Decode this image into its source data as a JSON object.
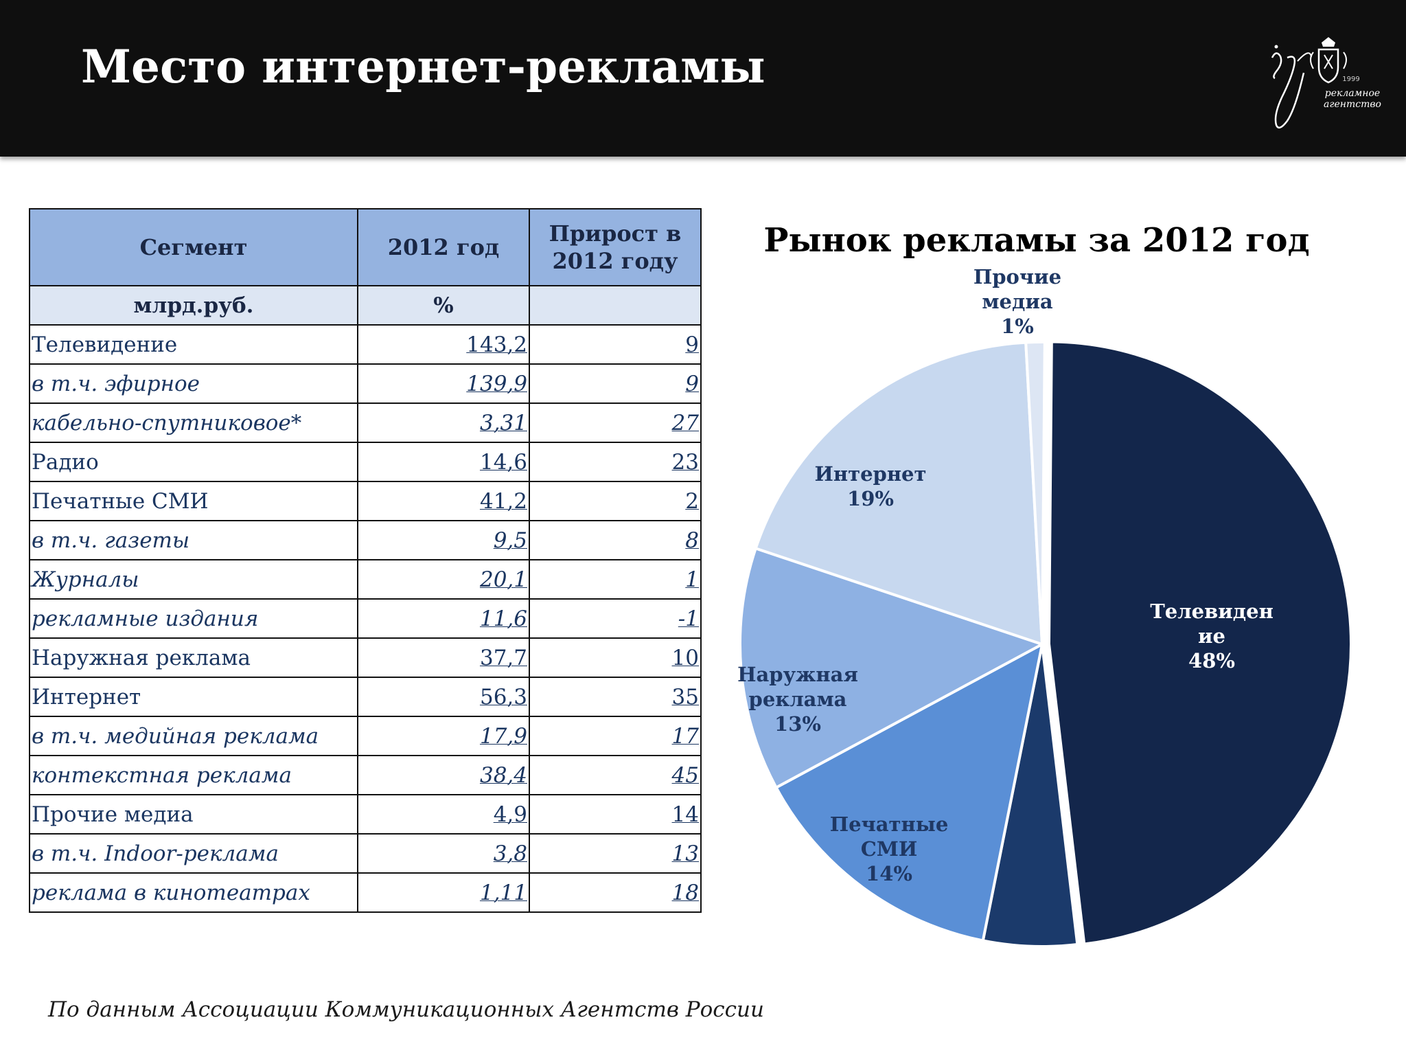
{
  "header": {
    "title": "Место интернет-рекламы",
    "logo_year": "1999",
    "logo_text": "рекламное агентство"
  },
  "table": {
    "headers": [
      "Сегмент",
      "2012 год",
      "Прирост в 2012 году"
    ],
    "units": [
      "млрд.руб.",
      "%",
      ""
    ],
    "rows": [
      {
        "segment": "Телевидение",
        "value": "143,2",
        "growth": "9",
        "italic": false
      },
      {
        "segment": "в т.ч. эфирное",
        "value": "139,9",
        "growth": "9",
        "italic": true
      },
      {
        "segment": "кабельно-спутниковое*",
        "value": "3,31",
        "growth": "27",
        "italic": true
      },
      {
        "segment": "Радио",
        "value": "14,6",
        "growth": "23",
        "italic": false
      },
      {
        "segment": "Печатные СМИ",
        "value": "41,2",
        "growth": "2",
        "italic": false
      },
      {
        "segment": "в т.ч. газеты",
        "value": "9,5",
        "growth": "8",
        "italic": true
      },
      {
        "segment": "Журналы",
        "value": "20,1",
        "growth": "1",
        "italic": true
      },
      {
        "segment": "рекламные издания",
        "value": "11,6",
        "growth": "-1",
        "italic": true
      },
      {
        "segment": "Наружная реклама",
        "value": "37,7",
        "growth": "10",
        "italic": false
      },
      {
        "segment": "Интернет",
        "value": "56,3",
        "growth": "35",
        "italic": false
      },
      {
        "segment": "в т.ч. медийная реклама",
        "value": "17,9",
        "growth": "17",
        "italic": true
      },
      {
        "segment": "контекстная реклама",
        "value": "38,4",
        "growth": "45",
        "italic": true
      },
      {
        "segment": "Прочие медиа",
        "value": "4,9",
        "growth": "14",
        "italic": false
      },
      {
        "segment": "в т.ч. Indoor-реклама",
        "value": "3,8",
        "growth": "13",
        "italic": true
      },
      {
        "segment": "реклама в кинотеатрах",
        "value": "1,11",
        "growth": "18",
        "italic": true
      }
    ]
  },
  "chart_data": {
    "type": "pie",
    "title": "Рынок рекламы за 2012 год",
    "slices": [
      {
        "lines": [
          "Телевиден",
          "ие",
          "48%"
        ],
        "value": 48,
        "color": "#13264b",
        "label_color": "#ffffff"
      },
      {
        "lines": [],
        "value": 5,
        "color": "#1b3a6b",
        "label_color": "#ffffff"
      },
      {
        "lines": [
          "Печатные",
          "СМИ",
          "14%"
        ],
        "value": 14,
        "color": "#5a8fd6",
        "label_color": "#1f3864"
      },
      {
        "lines": [
          "Наружная",
          "реклама",
          "13%"
        ],
        "value": 13,
        "color": "#8eb1e3",
        "label_color": "#1f3864"
      },
      {
        "lines": [
          "Интернет",
          "19%"
        ],
        "value": 19,
        "color": "#c7d8ef",
        "label_color": "#1f3864"
      },
      {
        "lines": [
          "Прочие",
          "медиа",
          "1%"
        ],
        "value": 1,
        "color": "#dde6f4",
        "label_color": "#1f3864"
      }
    ]
  },
  "source": "По данным  Ассоциации Коммуникационных Агентств России"
}
